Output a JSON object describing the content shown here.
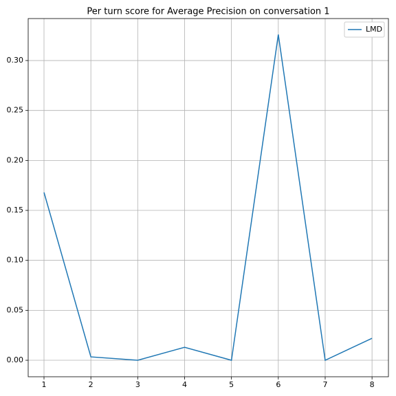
{
  "chart_data": {
    "type": "line",
    "title": "Per turn score for Average Precision on conversation 1",
    "x": [
      1,
      2,
      3,
      4,
      5,
      6,
      7,
      8
    ],
    "series": [
      {
        "name": "LMD",
        "color": "#1f77b4",
        "values": [
          0.168,
          0.0034,
          0.0,
          0.013,
          0.0,
          0.326,
          0.0,
          0.022
        ]
      }
    ],
    "xlim": [
      0.6625,
      8.35
    ],
    "xticks": [
      1,
      2,
      3,
      4,
      5,
      6,
      7,
      8
    ],
    "ylim": [
      -0.0165,
      0.342
    ],
    "yticks": [
      {
        "value": 0,
        "label": "0.00"
      },
      {
        "value": 0.05,
        "label": "0.05"
      },
      {
        "value": 0.1,
        "label": "0.10"
      },
      {
        "value": 0.15,
        "label": "0.15"
      },
      {
        "value": 0.2,
        "label": "0.20"
      },
      {
        "value": 0.25,
        "label": "0.25"
      },
      {
        "value": 0.3,
        "label": "0.30"
      }
    ],
    "grid": true,
    "legend": "upper right"
  }
}
